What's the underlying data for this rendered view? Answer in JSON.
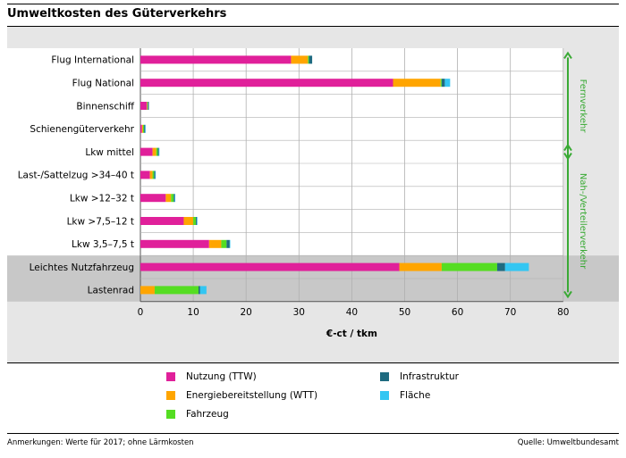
{
  "title": "Umweltkosten des Güterverkehrs",
  "chart_data": {
    "type": "bar",
    "orientation": "horizontal",
    "stacked": true,
    "categories": [
      "Flug International",
      "Flug National",
      "Binnenschiff",
      "Schienengüterverkehr",
      "Lkw mittel",
      "Last-/Sattelzug >34–40 t",
      "Lkw >12–32 t",
      "Lkw >7,5–12 t",
      "Lkw 3,5–7,5 t",
      "Leichtes Nutzfahrzeug",
      "Lastenrad"
    ],
    "series": [
      {
        "name": "Nutzung (TTW)",
        "color": "#e0209a",
        "values": [
          28.5,
          47.8,
          1.2,
          0.3,
          2.3,
          1.8,
          4.8,
          8.2,
          13.0,
          49.0,
          0.0
        ]
      },
      {
        "name": "Energiebereitstellung (WTT)",
        "color": "#ffa500",
        "values": [
          3.2,
          9.0,
          0.1,
          0.2,
          0.7,
          0.5,
          1.0,
          1.8,
          2.3,
          8.0,
          2.7
        ]
      },
      {
        "name": "Fahrzeug",
        "color": "#55dd22",
        "values": [
          0.2,
          0.2,
          0.1,
          0.2,
          0.3,
          0.3,
          0.5,
          0.5,
          1.0,
          10.5,
          8.3
        ]
      },
      {
        "name": "Infrastruktur",
        "color": "#1f6b80",
        "values": [
          0.6,
          0.6,
          0.2,
          0.2,
          0.2,
          0.2,
          0.2,
          0.2,
          0.6,
          1.5,
          0.3
        ]
      },
      {
        "name": "Fläche",
        "color": "#33c6f2",
        "values": [
          0.0,
          1.0,
          0.0,
          0.1,
          0.1,
          0.1,
          0.1,
          0.1,
          0.1,
          4.5,
          1.2
        ]
      }
    ],
    "xlabel": "€-ct / tkm",
    "xlim": [
      0,
      80
    ],
    "xticks": [
      0,
      10,
      20,
      30,
      40,
      50,
      60,
      70,
      80
    ],
    "grid": true,
    "highlighted_categories": [
      "Leichtes Nutzfahrzeug",
      "Lastenrad"
    ],
    "brackets": [
      {
        "label": "Fernverkehr",
        "from": "Flug International",
        "to": "Lkw mittel",
        "color": "#3aaa35"
      },
      {
        "label": "Nah-/Verteilerverkehr",
        "from": "Lkw mittel",
        "to": "Lastenrad",
        "color": "#3aaa35"
      }
    ]
  },
  "legend": [
    {
      "label": "Nutzung (TTW)",
      "color": "#e0209a"
    },
    {
      "label": "Energiebereitstellung (WTT)",
      "color": "#ffa500"
    },
    {
      "label": "Fahrzeug",
      "color": "#55dd22"
    },
    {
      "label": "Infrastruktur",
      "color": "#1f6b80"
    },
    {
      "label": "Fläche",
      "color": "#33c6f2"
    }
  ],
  "footer": {
    "note": "Anmerkungen: Werte für 2017; ohne Lärmkosten",
    "source": "Quelle:  Umweltbundesamt"
  }
}
